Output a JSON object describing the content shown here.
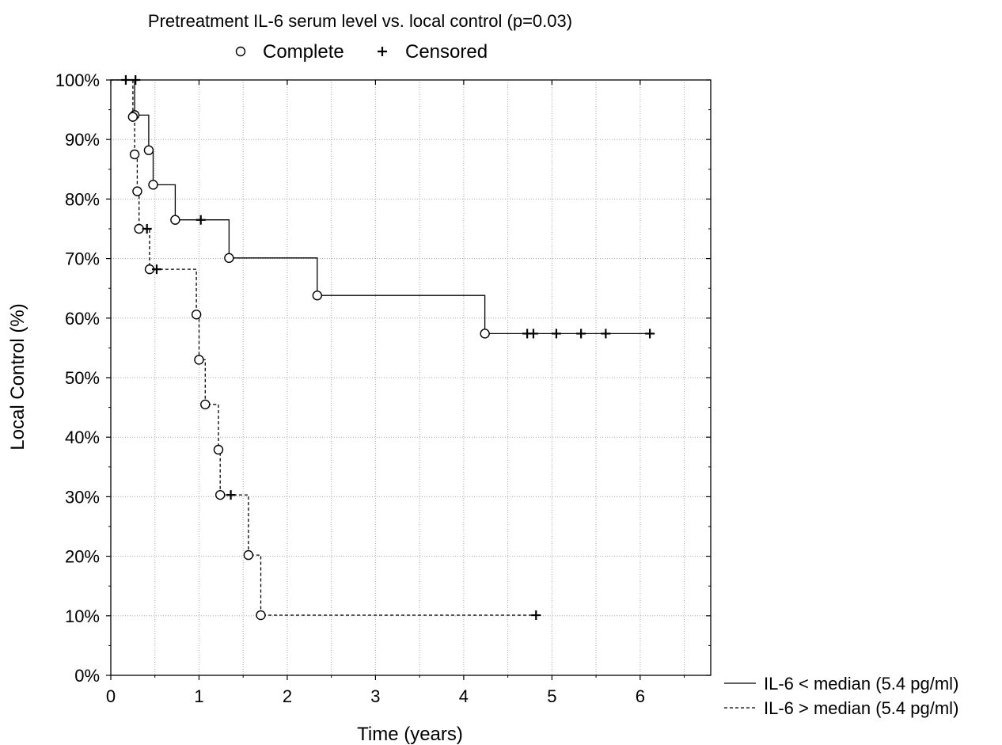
{
  "chart_data": {
    "type": "line",
    "subtype": "kaplan-meier",
    "title": "Pretreatment IL-6 serum level vs. local control (p=0.03)",
    "marker_legend": [
      {
        "symbol": "circle",
        "label": "Complete"
      },
      {
        "symbol": "plus",
        "label": "Censored"
      }
    ],
    "xlabel": "Time (years)",
    "ylabel": "Local Control (%)",
    "xlim": [
      0,
      6.8
    ],
    "ylim": [
      0,
      100
    ],
    "x_ticks": [
      "0",
      "1",
      "2",
      "3",
      "4",
      "5",
      "6"
    ],
    "y_ticks": [
      "0%",
      "10%",
      "20%",
      "30%",
      "40%",
      "50%",
      "60%",
      "70%",
      "80%",
      "90%",
      "100%"
    ],
    "grid": true,
    "legend_position": "bottom-right",
    "series": [
      {
        "name": "IL-6 < median (5.4 pg/ml)",
        "line_style": "solid",
        "start_censored": [
          0.17
        ],
        "events": [
          {
            "x": 0.27,
            "y": 94.1
          },
          {
            "x": 0.43,
            "y": 88.2
          },
          {
            "x": 0.48,
            "y": 82.4
          },
          {
            "x": 0.73,
            "y": 76.5
          },
          {
            "x": 1.34,
            "y": 70.1
          },
          {
            "x": 2.34,
            "y": 63.8
          },
          {
            "x": 4.24,
            "y": 57.4
          }
        ],
        "censored": [
          {
            "x": 1.02,
            "y": 76.5
          },
          {
            "x": 4.72,
            "y": 57.4
          },
          {
            "x": 4.79,
            "y": 57.4
          },
          {
            "x": 5.05,
            "y": 57.4
          },
          {
            "x": 5.33,
            "y": 57.4
          },
          {
            "x": 5.61,
            "y": 57.4
          },
          {
            "x": 6.11,
            "y": 57.4
          }
        ]
      },
      {
        "name": "IL-6 > median (5.4 pg/ml)",
        "line_style": "dashed",
        "start_censored": [
          0.28
        ],
        "events": [
          {
            "x": 0.25,
            "y": 93.8
          },
          {
            "x": 0.27,
            "y": 87.5
          },
          {
            "x": 0.3,
            "y": 81.3
          },
          {
            "x": 0.32,
            "y": 75.0
          },
          {
            "x": 0.44,
            "y": 68.2
          },
          {
            "x": 0.97,
            "y": 60.6
          },
          {
            "x": 1.0,
            "y": 53.0
          },
          {
            "x": 1.07,
            "y": 45.5
          },
          {
            "x": 1.22,
            "y": 37.9
          },
          {
            "x": 1.24,
            "y": 30.3
          },
          {
            "x": 1.56,
            "y": 20.2
          },
          {
            "x": 1.7,
            "y": 10.1
          }
        ],
        "censored": [
          {
            "x": 0.41,
            "y": 75.0
          },
          {
            "x": 0.52,
            "y": 68.2
          },
          {
            "x": 1.36,
            "y": 30.3
          },
          {
            "x": 4.82,
            "y": 10.1
          }
        ]
      }
    ]
  }
}
